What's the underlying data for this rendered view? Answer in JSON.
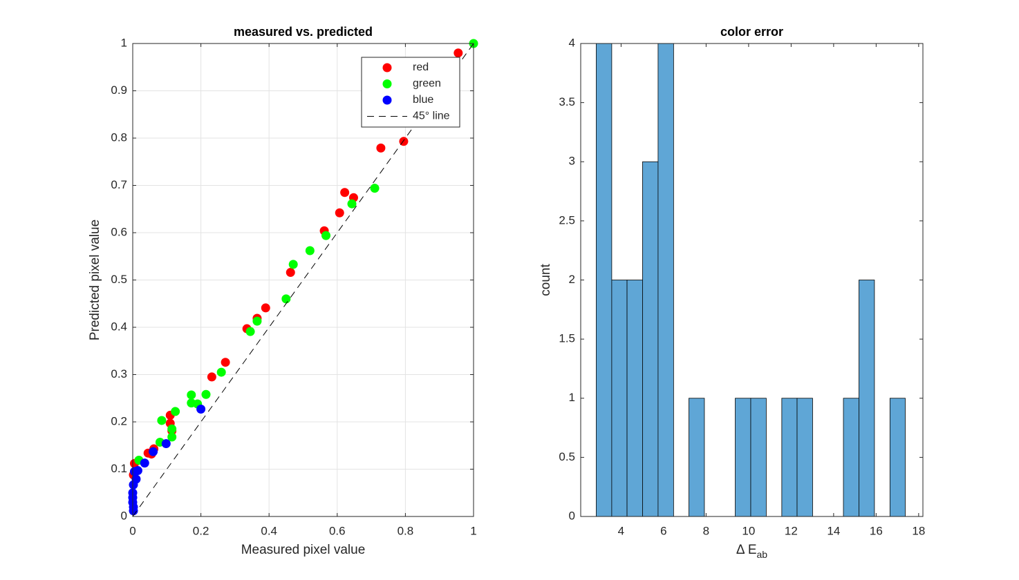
{
  "chart_data": [
    {
      "type": "scatter",
      "title": "measured vs. predicted",
      "x_label": "Measured pixel value",
      "y_label": "Predicted pixel value",
      "xlim": [
        0,
        1
      ],
      "ylim": [
        0,
        1
      ],
      "xticks": [
        0,
        0.2,
        0.4,
        0.6,
        0.8,
        1
      ],
      "yticks": [
        0,
        0.1,
        0.2,
        0.3,
        0.4,
        0.5,
        0.6,
        0.7,
        0.8,
        0.9,
        1
      ],
      "grid": true,
      "legend": "northeast",
      "series": [
        {
          "name": "red",
          "color": "#ff0000",
          "x": [
            0.955,
            0.795,
            0.728,
            0.622,
            0.648,
            0.607,
            0.562,
            0.463,
            0.39,
            0.365,
            0.335,
            0.272,
            0.232,
            0.11,
            0.11,
            0.115,
            0.062,
            0.045,
            0.055,
            0.005,
            0.002
          ],
          "values": [
            0.98,
            0.793,
            0.779,
            0.685,
            0.674,
            0.642,
            0.604,
            0.516,
            0.441,
            0.419,
            0.397,
            0.326,
            0.295,
            0.214,
            0.197,
            0.181,
            0.143,
            0.134,
            0.132,
            0.112,
            0.088
          ]
        },
        {
          "name": "green",
          "color": "#00ff00",
          "x": [
            1,
            0.71,
            0.643,
            0.567,
            0.52,
            0.471,
            0.45,
            0.365,
            0.345,
            0.26,
            0.215,
            0.172,
            0.125,
            0.172,
            0.19,
            0.085,
            0.115,
            0.115,
            0.08,
            0.018
          ],
          "values": [
            1,
            0.694,
            0.661,
            0.594,
            0.562,
            0.533,
            0.46,
            0.413,
            0.391,
            0.305,
            0.258,
            0.257,
            0.222,
            0.24,
            0.238,
            0.203,
            0.185,
            0.168,
            0.157,
            0.119
          ]
        },
        {
          "name": "blue",
          "color": "#0000ff",
          "x": [
            0.2,
            0.098,
            0.06,
            0.035,
            0.015,
            0.005,
            0.01,
            0.002,
            0,
            0,
            0,
            0.002,
            0.002
          ],
          "values": [
            0.227,
            0.154,
            0.137,
            0.113,
            0.097,
            0.095,
            0.079,
            0.067,
            0.05,
            0.04,
            0.03,
            0.02,
            0.012
          ]
        },
        {
          "name": "45° line",
          "color": "#000000",
          "line": "dashed",
          "x": [
            0,
            1
          ],
          "values": [
            0,
            1
          ]
        }
      ]
    },
    {
      "type": "histogram",
      "title": "color error",
      "x_label": "Δ E",
      "x_label_subscript": "ab",
      "y_label": "count",
      "xlim": [
        2.1,
        18.2
      ],
      "ylim": [
        0,
        4
      ],
      "xticks": [
        4,
        6,
        8,
        10,
        12,
        14,
        16,
        18
      ],
      "yticks": [
        0,
        0.5,
        1,
        1.5,
        2,
        2.5,
        3,
        3.5,
        4
      ],
      "grid": false,
      "color": "#5fa6d6",
      "bins": [
        2.83,
        3.56,
        4.28,
        5.01,
        5.74,
        6.47,
        7.19,
        7.92,
        8.65,
        9.37,
        10.1,
        10.83,
        11.56,
        12.28,
        13.01,
        13.74,
        14.46,
        15.19,
        15.92,
        16.65,
        17.37
      ],
      "values": [
        4,
        2,
        2,
        3,
        4,
        0,
        1,
        0,
        0,
        1,
        1,
        0,
        1,
        1,
        0,
        0,
        1,
        2,
        0,
        1
      ]
    }
  ]
}
